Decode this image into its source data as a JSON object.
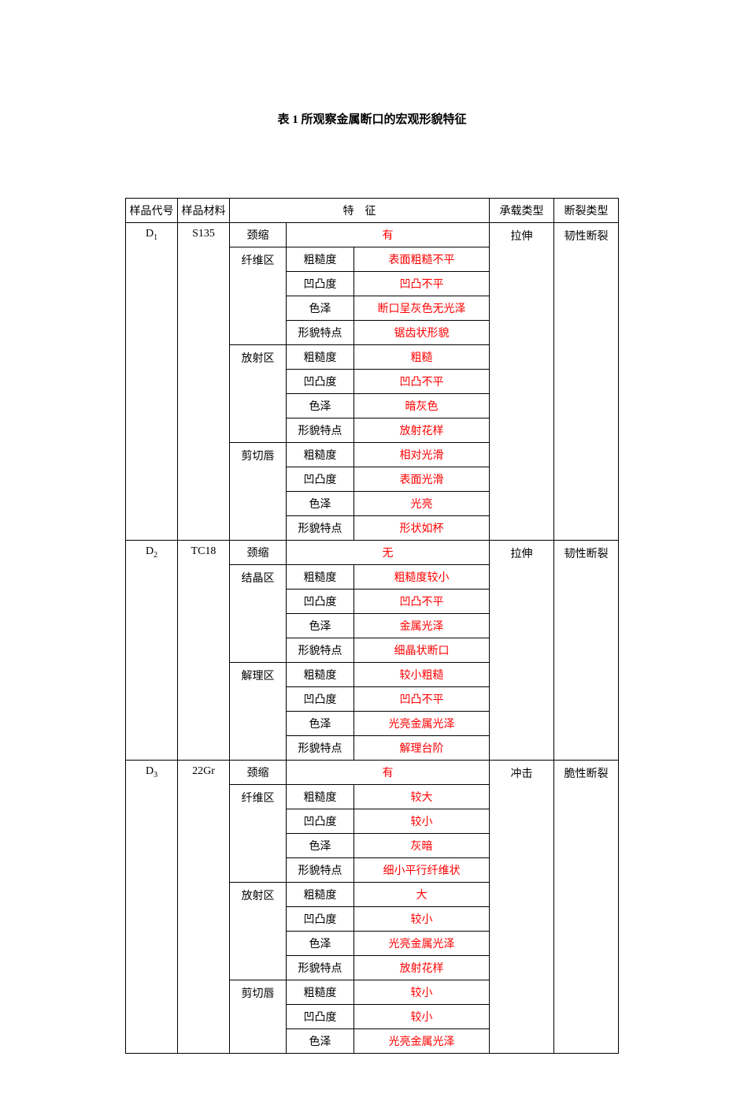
{
  "title": "表 1 所观察金属断口的宏观形貌特征",
  "headers": {
    "code": "样品代号",
    "material": "样品材料",
    "feature": "特　征",
    "load": "承载类型",
    "fracture": "断裂类型"
  },
  "attrLabels": {
    "roughness": "粗糙度",
    "bump": "凹凸度",
    "color": "色泽",
    "morph": "形貌特点"
  },
  "samples": [
    {
      "code_prefix": "D",
      "code_sub": "1",
      "material": "S135",
      "load": "拉伸",
      "fracture": "韧性断裂",
      "neck_label": "颈缩",
      "neck_value": "有",
      "zones": [
        {
          "name": "纤维区",
          "roughness": "表面粗糙不平",
          "bump": "凹凸不平",
          "color": "断口呈灰色无光泽",
          "morph": "锯齿状形貌"
        },
        {
          "name": "放射区",
          "roughness": "粗糙",
          "bump": "凹凸不平",
          "color": "暗灰色",
          "morph": "放射花样"
        },
        {
          "name": "剪切唇",
          "roughness": "相对光滑",
          "bump": "表面光滑",
          "color": "光亮",
          "morph": "形状如杯"
        }
      ]
    },
    {
      "code_prefix": "D",
      "code_sub": "2",
      "material": "TC18",
      "load": "拉伸",
      "fracture": "韧性断裂",
      "neck_label": "颈缩",
      "neck_value": "无",
      "zones": [
        {
          "name": "结晶区",
          "roughness": "粗糙度较小",
          "bump": "凹凸不平",
          "color": "金属光泽",
          "morph": "细晶状断口"
        },
        {
          "name": "解理区",
          "roughness": "较小粗糙",
          "bump": "凹凸不平",
          "color": "光亮金属光泽",
          "morph": "解理台阶"
        }
      ]
    },
    {
      "code_prefix": "D",
      "code_sub": "3",
      "material": "22Gr",
      "load": "冲击",
      "fracture": "脆性断裂",
      "neck_label": "颈缩",
      "neck_value": "有",
      "zones": [
        {
          "name": "纤维区",
          "roughness": "较大",
          "bump": "较小",
          "color": "灰暗",
          "morph": "细小平行纤维状"
        },
        {
          "name": "放射区",
          "roughness": "大",
          "bump": "较小",
          "color": "光亮金属光泽",
          "morph": "放射花样"
        },
        {
          "name": "剪切唇",
          "partial": true,
          "roughness": "较小",
          "bump": "较小",
          "color": "光亮金属光泽"
        }
      ]
    }
  ]
}
